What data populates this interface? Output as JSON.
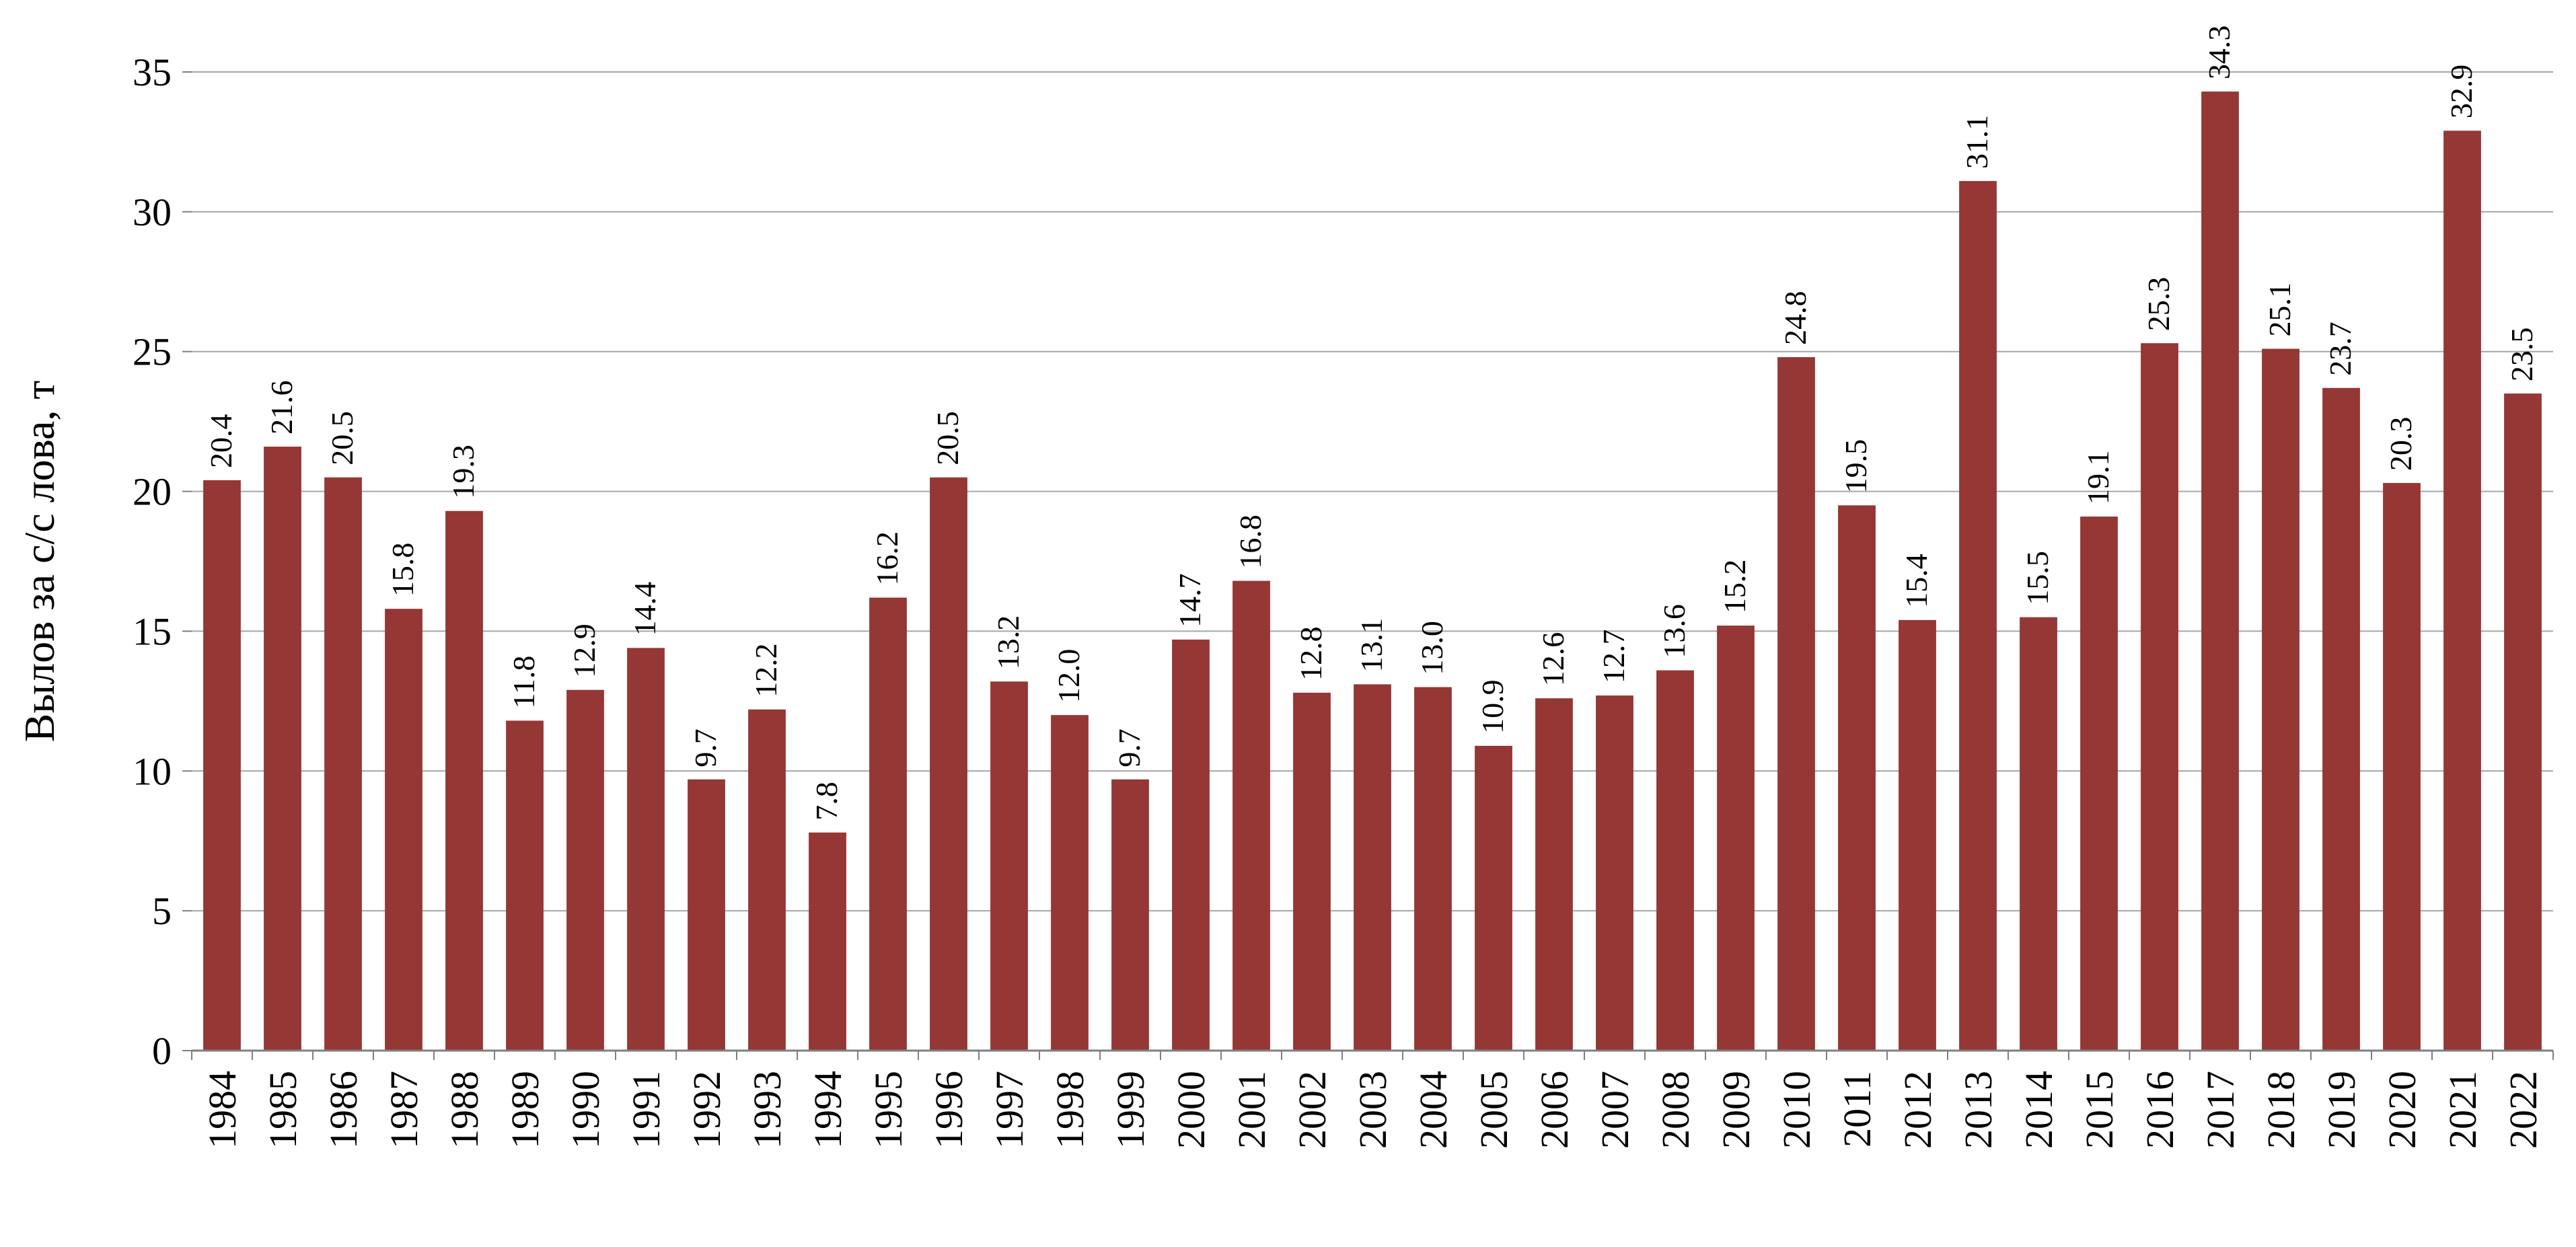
{
  "chart_data": {
    "type": "bar",
    "title": "",
    "xlabel": "",
    "ylabel": "Вылов за с/с лова, т",
    "ylim": [
      0,
      35
    ],
    "yticks": [
      "0",
      "5",
      "10",
      "15",
      "20",
      "25",
      "30",
      "35"
    ],
    "grid": "horizontal",
    "legend": "none",
    "bar_color": "#953735",
    "categories": [
      "1984",
      "1985",
      "1986",
      "1987",
      "1988",
      "1989",
      "1990",
      "1991",
      "1992",
      "1993",
      "1994",
      "1995",
      "1996",
      "1997",
      "1998",
      "1999",
      "2000",
      "2001",
      "2002",
      "2003",
      "2004",
      "2005",
      "2006",
      "2007",
      "2008",
      "2009",
      "2010",
      "2011",
      "2012",
      "2013",
      "2014",
      "2015",
      "2016",
      "2017",
      "2018",
      "2019",
      "2020",
      "2021",
      "2022"
    ],
    "values": [
      20.4,
      21.6,
      20.5,
      15.8,
      19.3,
      11.8,
      12.9,
      14.4,
      9.7,
      12.2,
      7.8,
      16.2,
      20.5,
      13.2,
      12.0,
      9.7,
      14.7,
      16.8,
      12.8,
      13.1,
      13.0,
      10.9,
      12.6,
      12.7,
      13.6,
      15.2,
      24.8,
      19.5,
      15.4,
      31.1,
      15.5,
      19.1,
      25.3,
      34.3,
      25.1,
      23.7,
      20.3,
      32.9,
      23.5
    ],
    "data_labels": [
      "20.4",
      "21.6",
      "20.5",
      "15.8",
      "19.3",
      "11.8",
      "12.9",
      "14.4",
      "9.7",
      "12.2",
      "7.8",
      "16.2",
      "20.5",
      "13.2",
      "12.0",
      "9.7",
      "14.7",
      "16.8",
      "12.8",
      "13.1",
      "13.0",
      "10.9",
      "12.6",
      "12.7",
      "13.6",
      "15.2",
      "24.8",
      "19.5",
      "15.4",
      "31.1",
      "15.5",
      "19.1",
      "25.3",
      "34.3",
      "25.1",
      "23.7",
      "20.3",
      "32.9",
      "23.5"
    ]
  }
}
